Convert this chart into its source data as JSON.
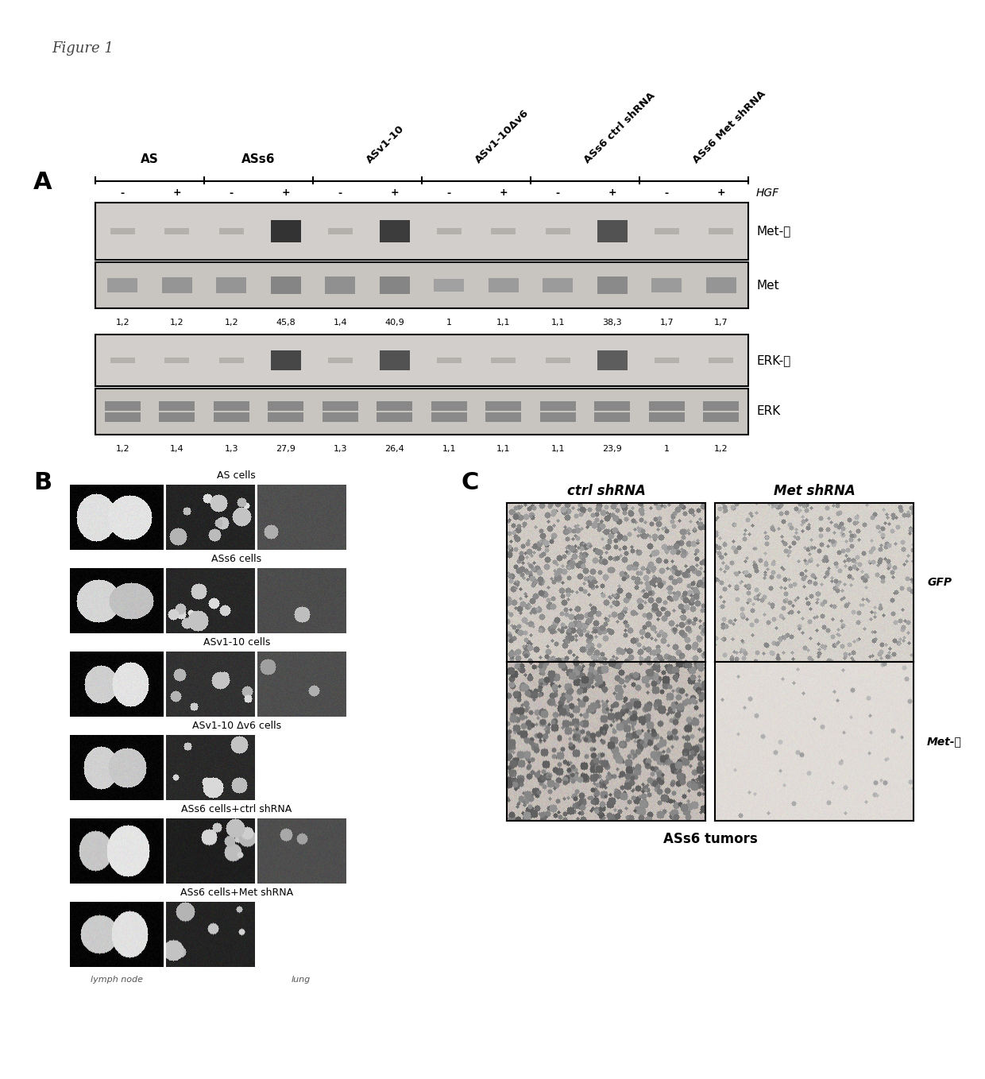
{
  "figure_label": "Figure 1",
  "panel_A_label": "A",
  "panel_B_label": "B",
  "panel_C_label": "C",
  "col_headers_straight": [
    "AS",
    "ASs6"
  ],
  "col_headers_rotated": [
    "ASv1-10",
    "ASv1-10Δv6",
    "ASs6 ctrl shRNA",
    "ASs6 Met shRNA"
  ],
  "hgf_label": "HGF",
  "met_p_label": "Met-ⓟ",
  "met_label": "Met",
  "erk_p_label": "ERK-ⓟ",
  "erk_label": "ERK",
  "met_values": [
    "1,2",
    "1,2",
    "1,2",
    "45,8",
    "1,4",
    "40,9",
    "1",
    "1,1",
    "1,1",
    "38,3",
    "1,7",
    "1,7"
  ],
  "erk_values": [
    "1,2",
    "1,4",
    "1,3",
    "27,9",
    "1,3",
    "26,4",
    "1,1",
    "1,1",
    "1,1",
    "23,9",
    "1",
    "1,2"
  ],
  "B_row_labels": [
    "AS cells",
    "ASs6 cells",
    "ASv1-10 cells",
    "ASv1-10 Δv6 cells",
    "ASs6 cells+ctrl shRNA",
    "ASs6 cells+Met shRNA"
  ],
  "C_col_labels": [
    "ctrl shRNA",
    "Met shRNA"
  ],
  "C_row_labels": [
    "GFP",
    "Met-ⓟ"
  ],
  "C_bottom_label": "ASs6 tumors",
  "blot_bg": "#c8c8c4",
  "blot_bg2": "#d4d0cc",
  "met_p_intensities": [
    0,
    0,
    0,
    2.5,
    0,
    2.2,
    0,
    0,
    0,
    1.8,
    0,
    0
  ],
  "erk_p_intensities": [
    0,
    0,
    0,
    2.0,
    0,
    1.8,
    0,
    0,
    0,
    1.6,
    0,
    0
  ],
  "met_intensities": [
    0.5,
    0.6,
    0.6,
    0.9,
    0.7,
    0.9,
    0.4,
    0.5,
    0.5,
    0.8,
    0.5,
    0.6
  ],
  "erk_intensities": [
    0.8,
    0.8,
    0.8,
    0.8,
    0.7,
    0.8,
    0.7,
    0.7,
    0.7,
    0.8,
    0.8,
    0.8
  ]
}
